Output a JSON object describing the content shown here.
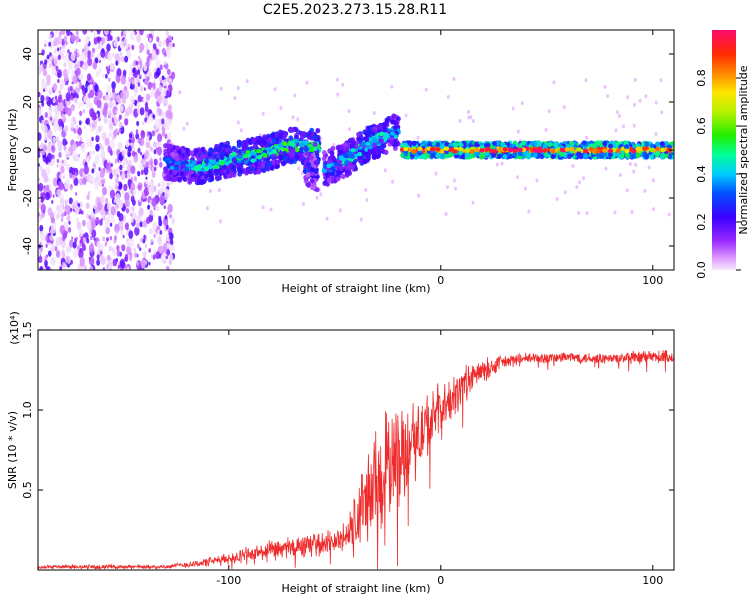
{
  "figure": {
    "title": "C2E5.2023.273.15.28.R11"
  },
  "chart_data": [
    {
      "type": "heatmap",
      "title": "C2E5.2023.273.15.28.R11",
      "xlabel": "Height of straight line (km)",
      "ylabel": "Frequency (Hz)",
      "xlim": [
        -190,
        110
      ],
      "ylim": [
        -50,
        50
      ],
      "xticks": [
        -100,
        0,
        100
      ],
      "xtick_labels": [
        "-100",
        "0",
        "100"
      ],
      "yticks": [
        -40,
        -20,
        0,
        20,
        40
      ],
      "ytick_labels": [
        "-40",
        "-20",
        "0",
        "20",
        "40"
      ],
      "colorbar": {
        "label": "Normalized spectral amplitude",
        "range": [
          0,
          1
        ],
        "ticks": [
          0.0,
          0.2,
          0.4,
          0.6,
          0.8
        ],
        "tick_labels": [
          "0.0",
          "0.2",
          "0.4",
          "0.6",
          "0.8"
        ]
      },
      "ridge": {
        "description_points_x": [
          -130,
          -110,
          -90,
          -70,
          -60
        ],
        "segments": [
          {
            "x": [
              -130,
              -115,
              -100,
              -85,
              -70,
              -57
            ],
            "freq": [
              -5,
              -7,
              -4,
              -2,
              2,
              1
            ],
            "amp": [
              0.35,
              0.45,
              0.5,
              0.5,
              0.55,
              0.5
            ]
          },
          {
            "x": [
              -64,
              -58
            ],
            "freq": [
              -7,
              -10
            ],
            "amp": [
              0.3,
              0.3
            ]
          },
          {
            "x": [
              -55,
              -45,
              -35,
              -28,
              -20
            ],
            "freq": [
              -8,
              -4,
              2,
              5,
              8
            ],
            "amp": [
              0.4,
              0.45,
              0.5,
              0.45,
              0.4
            ]
          },
          {
            "x": [
              -18,
              0,
              20,
              40,
              60,
              80,
              100,
              110
            ],
            "freq": [
              0,
              0,
              0,
              0,
              0,
              0,
              0,
              0
            ],
            "amp": [
              0.9,
              0.9,
              0.9,
              0.95,
              0.9,
              0.9,
              0.9,
              0.9
            ]
          }
        ],
        "noise_region_x": [
          -190,
          -130
        ]
      }
    },
    {
      "type": "line",
      "xlabel": "Height of straight line (km)",
      "ylabel": "SNR (10 * v/v)",
      "y_multiplier": "(x10⁴)",
      "xlim": [
        -190,
        110
      ],
      "ylim": [
        0,
        1.5
      ],
      "xticks": [
        -100,
        0,
        100
      ],
      "xtick_labels": [
        "-100",
        "0",
        "100"
      ],
      "yticks": [
        0.5,
        1.0,
        1.5
      ],
      "ytick_labels": [
        "0.5",
        "1.0",
        "1.5"
      ],
      "series": [
        {
          "name": "SNR",
          "color": "#ee2a2a",
          "x": [
            -190,
            -170,
            -150,
            -130,
            -115,
            -100,
            -90,
            -80,
            -70,
            -60,
            -50,
            -45,
            -40,
            -35,
            -30,
            -25,
            -20,
            -15,
            -10,
            -5,
            0,
            5,
            10,
            20,
            30,
            40,
            60,
            80,
            100,
            110
          ],
          "y": [
            0.02,
            0.02,
            0.02,
            0.02,
            0.04,
            0.07,
            0.1,
            0.12,
            0.14,
            0.16,
            0.18,
            0.2,
            0.3,
            0.45,
            0.55,
            0.65,
            0.72,
            0.78,
            0.85,
            0.92,
            1.0,
            1.05,
            1.15,
            1.25,
            1.3,
            1.32,
            1.33,
            1.32,
            1.33,
            1.33
          ],
          "noise_amplitude": [
            0.01,
            0.01,
            0.01,
            0.01,
            0.02,
            0.03,
            0.04,
            0.05,
            0.06,
            0.06,
            0.06,
            0.08,
            0.18,
            0.25,
            0.3,
            0.3,
            0.28,
            0.22,
            0.2,
            0.18,
            0.14,
            0.12,
            0.1,
            0.06,
            0.04,
            0.03,
            0.03,
            0.03,
            0.04,
            0.04
          ]
        }
      ]
    }
  ]
}
